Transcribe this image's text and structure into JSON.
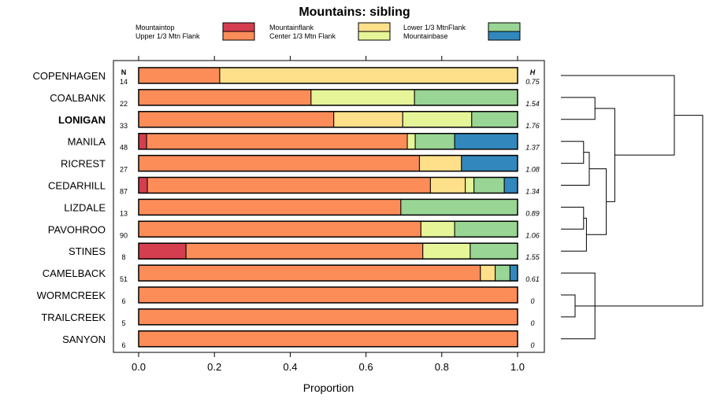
{
  "chart_data": {
    "type": "bar",
    "orientation": "horizontal",
    "stacked": true,
    "title": "Mountains: sibling",
    "xlabel": "Proportion",
    "ylabel": "",
    "xlim": [
      0,
      1
    ],
    "xticks": [
      "0.0",
      "0.2",
      "0.4",
      "0.6",
      "0.8",
      "1.0"
    ],
    "n_header": "N",
    "h_header": "H",
    "legend": [
      {
        "key": "mountaintop",
        "label": "Mountaintop",
        "color": "#d53e4f"
      },
      {
        "key": "upper",
        "label": "Upper 1/3 Mtn Flank",
        "color": "#fc8d59"
      },
      {
        "key": "mountainflank",
        "label": "Mountainflank",
        "color": "#fee08b"
      },
      {
        "key": "center",
        "label": "Center 1/3 Mtn Flank",
        "color": "#e6f598"
      },
      {
        "key": "lower",
        "label": "Lower 1/3 MtnFlank",
        "color": "#99d594"
      },
      {
        "key": "base",
        "label": "Mountainbase",
        "color": "#3288bd"
      }
    ],
    "categories": [
      "COPENHAGEN",
      "COALBANK",
      "LONIGAN",
      "MANILA",
      "RICREST",
      "CEDARHILL",
      "LIZDALE",
      "PAVOHROO",
      "STINES",
      "CAMELBACK",
      "WORMCREEK",
      "TRAILCREEK",
      "SANYON"
    ],
    "bold_category": "LONIGAN",
    "n": [
      14,
      22,
      33,
      48,
      27,
      87,
      13,
      90,
      8,
      51,
      6,
      5,
      6
    ],
    "h": [
      "0.75",
      "1.54",
      "1.76",
      "1.37",
      "1.08",
      "1.34",
      "0.89",
      "1.06",
      "1.55",
      "0.61",
      "0",
      "0",
      "0"
    ],
    "series": [
      {
        "name": "Mountaintop",
        "values": [
          0,
          0,
          0,
          0.021,
          0,
          0.023,
          0,
          0,
          0.125,
          0,
          0,
          0,
          0
        ]
      },
      {
        "name": "Upper 1/3 Mtn Flank",
        "values": [
          0.214,
          0.455,
          0.515,
          0.688,
          0.741,
          0.747,
          0.692,
          0.745,
          0.625,
          0.902,
          1,
          1,
          1
        ]
      },
      {
        "name": "Mountainflank",
        "values": [
          0.786,
          0,
          0.182,
          0,
          0.111,
          0.092,
          0,
          0,
          0,
          0.039,
          0,
          0,
          0
        ]
      },
      {
        "name": "Center 1/3 Mtn Flank",
        "values": [
          0,
          0.273,
          0.182,
          0.021,
          0,
          0.023,
          0,
          0.089,
          0.125,
          0,
          0,
          0,
          0
        ]
      },
      {
        "name": "Lower 1/3 MtnFlank",
        "values": [
          0,
          0.272,
          0.121,
          0.104,
          0,
          0.08,
          0.308,
          0.166,
          0.125,
          0.039,
          0,
          0,
          0
        ]
      },
      {
        "name": "Mountainbase",
        "values": [
          0,
          0,
          0,
          0.166,
          0.148,
          0.035,
          0,
          0,
          0,
          0.02,
          0,
          0,
          0
        ]
      }
    ],
    "dendrogram": [
      {
        "a": 10,
        "b": 11,
        "h": 0.05
      },
      {
        "a": 12,
        "b": 9,
        "h": 0.12
      },
      {
        "a": 13,
        "b": 14,
        "h": 0.2
      },
      {
        "a": 3,
        "b": 4,
        "h": 0.08
      },
      {
        "a": 16,
        "b": 5,
        "h": 0.1
      },
      {
        "a": 6,
        "b": 7,
        "h": 0.08
      },
      {
        "a": 18,
        "b": 8,
        "h": 0.09
      },
      {
        "a": 17,
        "b": 19,
        "h": 0.16
      },
      {
        "a": 1,
        "b": 2,
        "h": 0.12
      },
      {
        "a": 21,
        "b": 20,
        "h": 0.19
      },
      {
        "a": 0,
        "b": 22,
        "h": 0.4
      },
      {
        "a": 15,
        "b": 23,
        "h": 0.5
      }
    ]
  }
}
